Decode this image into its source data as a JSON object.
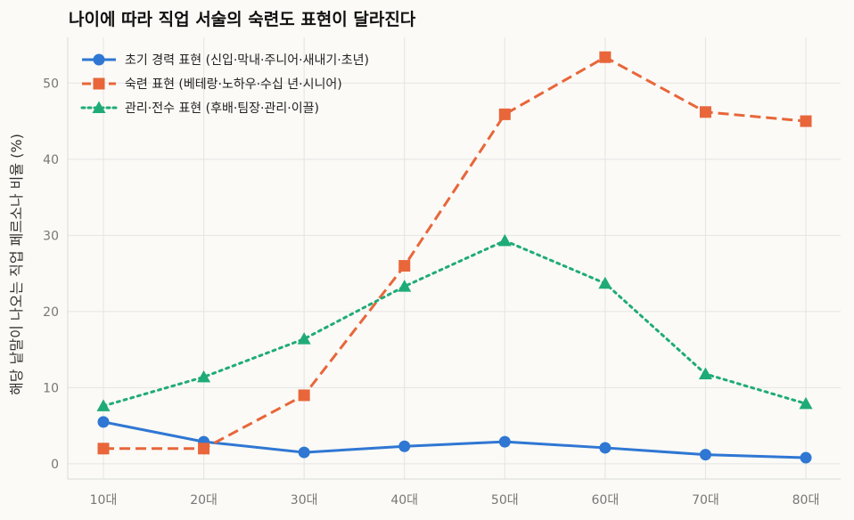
{
  "chart_data": {
    "type": "line",
    "title": "나이에 따라 직업 서술의 숙련도 표현이 달라진다",
    "xlabel": "",
    "ylabel": "해당 낱말이 나오는 직업 페르소나 비율 (%)",
    "categories": [
      "10대",
      "20대",
      "30대",
      "40대",
      "50대",
      "60대",
      "70대",
      "80대"
    ],
    "ylim": [
      -2,
      56
    ],
    "yticks": [
      0,
      10,
      20,
      30,
      40,
      50
    ],
    "grid": true,
    "legend_position": "top-left",
    "series": [
      {
        "name": "초기 경력 표현 (신입·막내·주니어·새내기·초년)",
        "values": [
          5.5,
          2.9,
          1.5,
          2.3,
          2.9,
          2.1,
          1.2,
          0.8
        ],
        "color": "#2f77d3",
        "line_style": "solid",
        "marker": "circle"
      },
      {
        "name": "숙련 표현 (베테랑·노하우·수십 년·시니어)",
        "values": [
          2.0,
          2.0,
          9.0,
          26.0,
          45.9,
          53.4,
          46.2,
          45.0
        ],
        "color": "#e8663a",
        "line_style": "dashed",
        "marker": "square"
      },
      {
        "name": "관리·전수 표현 (후배·팀장·관리·이끌)",
        "values": [
          7.6,
          11.4,
          16.4,
          23.3,
          29.3,
          23.7,
          11.8,
          7.9
        ],
        "color": "#1fab78",
        "line_style": "dotted",
        "marker": "triangle"
      }
    ]
  }
}
